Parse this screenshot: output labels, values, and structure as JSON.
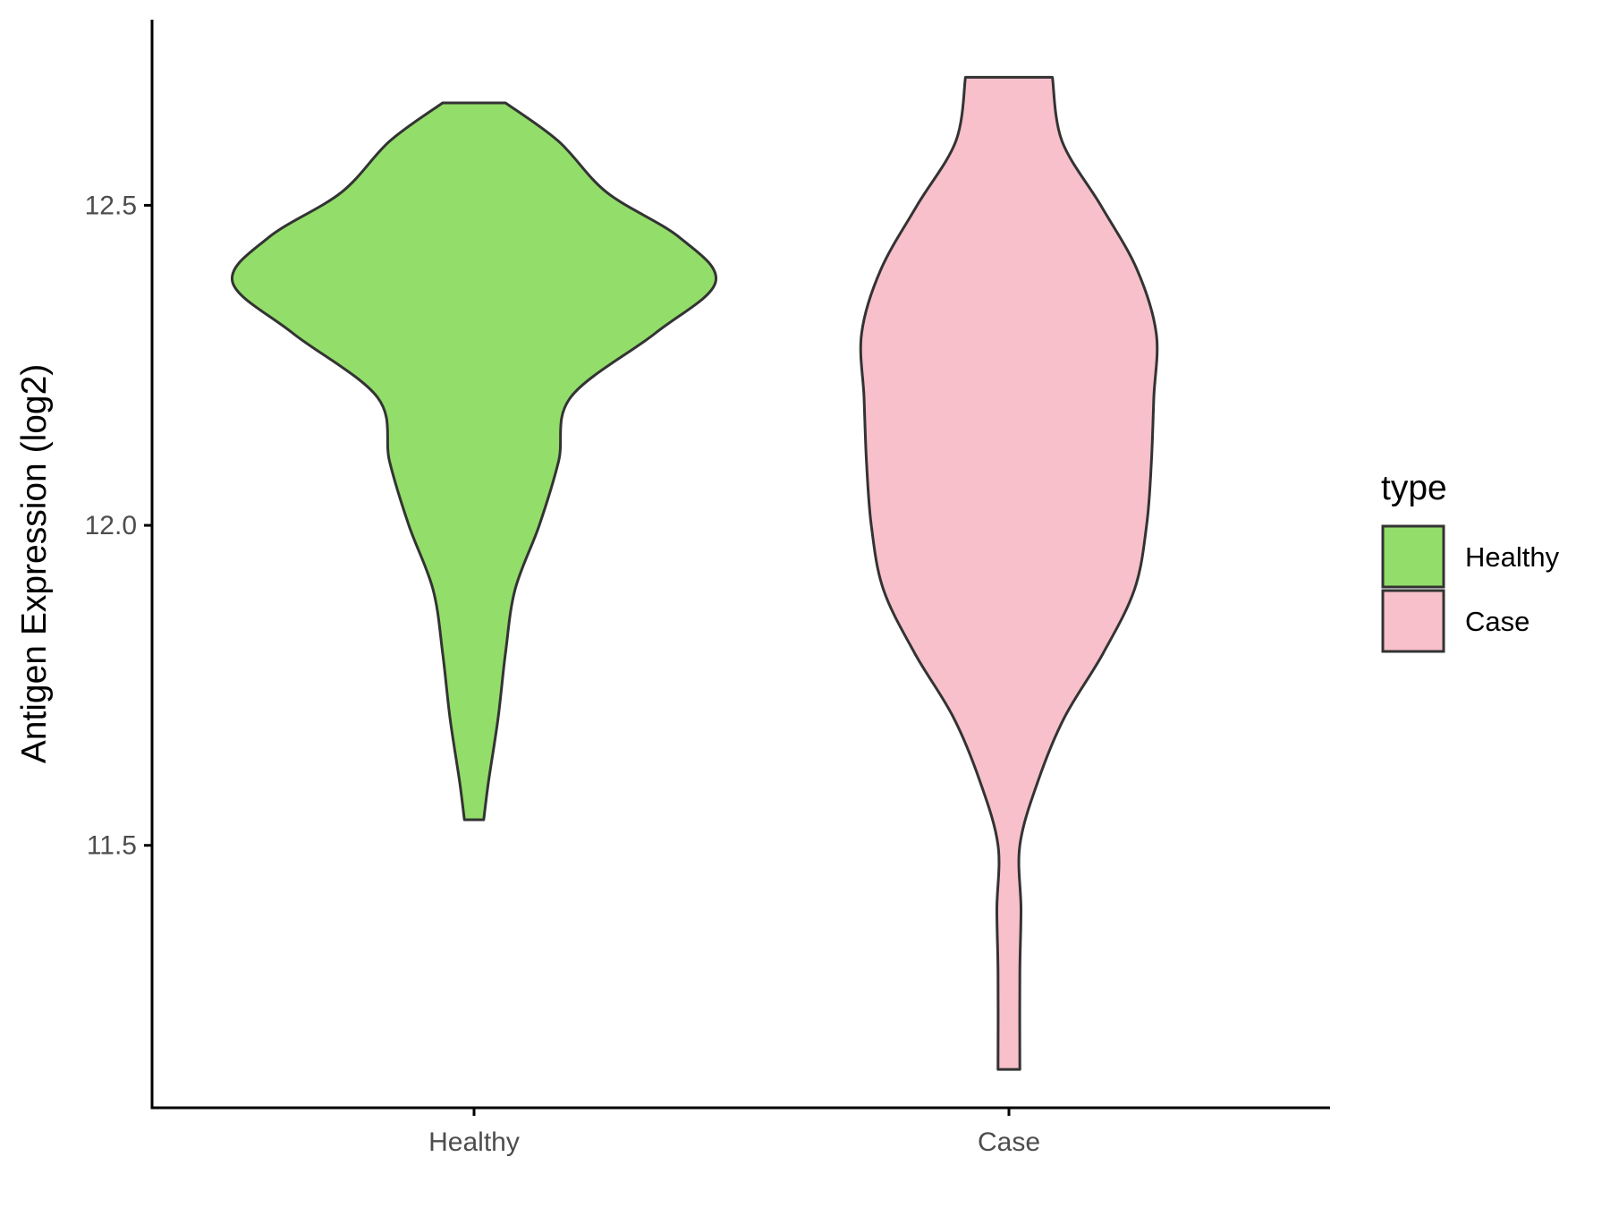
{
  "chart_data": {
    "type": "violin",
    "ylabel": "Antigen Expression (log2)",
    "xlabel": "",
    "categories": [
      "Healthy",
      "Case"
    ],
    "ylim": [
      11.09,
      12.79
    ],
    "yticks": [
      11.5,
      12.0,
      12.5
    ],
    "ytick_labels": [
      "11.5",
      "12.0",
      "12.5"
    ],
    "grid": false,
    "legend": {
      "title": "type",
      "position": "right",
      "entries": [
        {
          "label": "Healthy",
          "color": "#93dd6a"
        },
        {
          "label": "Case",
          "color": "#f8c0cb"
        }
      ]
    },
    "outline_color": "#333333",
    "series": [
      {
        "category": "Healthy",
        "color": "#93dd6a",
        "min": 11.54,
        "max": 12.66,
        "density_profile": [
          [
            11.54,
            0.04
          ],
          [
            11.6,
            0.06
          ],
          [
            11.7,
            0.1
          ],
          [
            11.8,
            0.13
          ],
          [
            11.9,
            0.17
          ],
          [
            12.0,
            0.27
          ],
          [
            12.1,
            0.35
          ],
          [
            12.2,
            0.4
          ],
          [
            12.3,
            0.75
          ],
          [
            12.38,
            1.0
          ],
          [
            12.45,
            0.85
          ],
          [
            12.52,
            0.55
          ],
          [
            12.6,
            0.35
          ],
          [
            12.66,
            0.13
          ]
        ]
      },
      {
        "category": "Case",
        "color": "#f8c0cb",
        "min": 11.15,
        "max": 12.7,
        "density_profile": [
          [
            11.15,
            0.045
          ],
          [
            11.3,
            0.045
          ],
          [
            11.4,
            0.05
          ],
          [
            11.5,
            0.045
          ],
          [
            11.6,
            0.12
          ],
          [
            11.7,
            0.23
          ],
          [
            11.8,
            0.39
          ],
          [
            11.9,
            0.52
          ],
          [
            12.0,
            0.57
          ],
          [
            12.1,
            0.59
          ],
          [
            12.2,
            0.6
          ],
          [
            12.3,
            0.61
          ],
          [
            12.4,
            0.53
          ],
          [
            12.5,
            0.38
          ],
          [
            12.6,
            0.22
          ],
          [
            12.7,
            0.18
          ]
        ]
      }
    ]
  }
}
